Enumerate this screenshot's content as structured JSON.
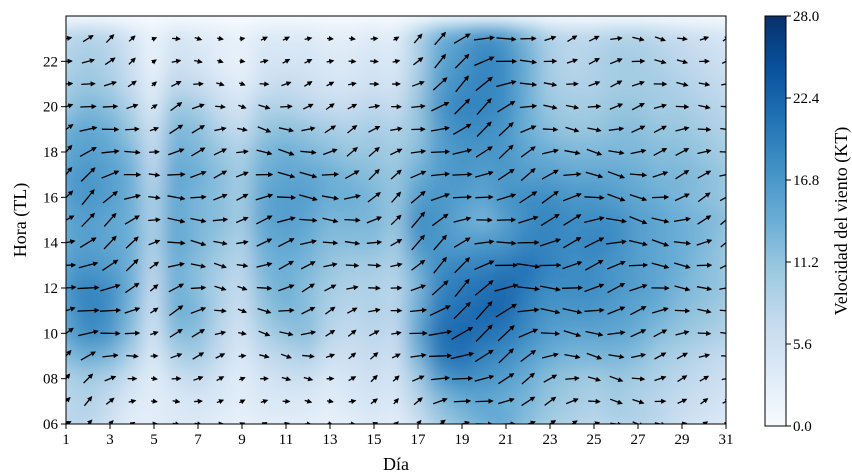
{
  "chart_data": {
    "type": "heatmap",
    "subtype": "wind-speed heatmap with wind-direction vectors",
    "title": "",
    "xlabel": "Día",
    "ylabel": "Hora (TL)",
    "colorbar_label": "Velocidad del viento (KT)",
    "colormap": "Blues",
    "colors": {
      "low": "#f7fbff",
      "high": "#08306b"
    },
    "xlim": [
      1,
      31
    ],
    "ylim": [
      6,
      24
    ],
    "x_ticks": [
      "1",
      "3",
      "5",
      "7",
      "9",
      "11",
      "13",
      "15",
      "17",
      "19",
      "21",
      "23",
      "25",
      "27",
      "29",
      "31"
    ],
    "y_ticks": [
      "06",
      "08",
      "10",
      "12",
      "14",
      "16",
      "18",
      "20",
      "22"
    ],
    "colorbar_range": [
      0,
      28
    ],
    "colorbar_ticks": [
      "0.0",
      "5.6",
      "11.2",
      "16.8",
      "22.4",
      "28.0"
    ],
    "x": [
      1,
      2,
      3,
      4,
      5,
      6,
      7,
      8,
      9,
      10,
      11,
      12,
      13,
      14,
      15,
      16,
      17,
      18,
      19,
      20,
      21,
      22,
      23,
      24,
      25,
      26,
      27,
      28,
      29,
      30,
      31
    ],
    "y": [
      6,
      7,
      8,
      9,
      10,
      11,
      12,
      13,
      14,
      15,
      16,
      17,
      18,
      19,
      20,
      21,
      22,
      23
    ],
    "speed_grid": [
      [
        8,
        8,
        6,
        3,
        3,
        4,
        4,
        3,
        2,
        3,
        3,
        3,
        2,
        3,
        4,
        3,
        6,
        10,
        12,
        14,
        15,
        12,
        10,
        9,
        8,
        9,
        9,
        8,
        6,
        5,
        4
      ],
      [
        8,
        9,
        7,
        4,
        3,
        4,
        5,
        4,
        3,
        4,
        4,
        4,
        3,
        4,
        5,
        4,
        8,
        12,
        14,
        15,
        14,
        13,
        11,
        10,
        9,
        10,
        9,
        8,
        7,
        6,
        5
      ],
      [
        9,
        10,
        9,
        6,
        3,
        6,
        7,
        5,
        3,
        5,
        6,
        6,
        4,
        5,
        6,
        5,
        10,
        16,
        18,
        17,
        16,
        14,
        12,
        11,
        10,
        11,
        10,
        9,
        8,
        7,
        6
      ],
      [
        12,
        14,
        13,
        9,
        4,
        9,
        10,
        7,
        4,
        7,
        8,
        9,
        6,
        6,
        7,
        6,
        13,
        20,
        21,
        19,
        18,
        16,
        14,
        13,
        13,
        13,
        12,
        10,
        9,
        8,
        7
      ],
      [
        15,
        18,
        17,
        12,
        5,
        12,
        12,
        8,
        5,
        9,
        11,
        12,
        8,
        7,
        8,
        7,
        15,
        21,
        22,
        21,
        20,
        18,
        16,
        15,
        15,
        15,
        14,
        12,
        11,
        10,
        9
      ],
      [
        16,
        19,
        18,
        13,
        6,
        14,
        13,
        9,
        6,
        11,
        13,
        12,
        9,
        8,
        9,
        8,
        14,
        20,
        21,
        22,
        22,
        19,
        17,
        17,
        17,
        16,
        15,
        14,
        12,
        11,
        10
      ],
      [
        17,
        19,
        18,
        14,
        7,
        14,
        12,
        9,
        7,
        12,
        14,
        12,
        10,
        9,
        9,
        8,
        13,
        19,
        20,
        21,
        22,
        20,
        18,
        18,
        18,
        17,
        16,
        15,
        13,
        12,
        11
      ],
      [
        16,
        17,
        16,
        14,
        8,
        14,
        12,
        10,
        8,
        13,
        14,
        13,
        11,
        10,
        10,
        9,
        14,
        18,
        19,
        19,
        20,
        21,
        19,
        18,
        18,
        17,
        16,
        15,
        14,
        12,
        11
      ],
      [
        15,
        16,
        15,
        14,
        9,
        15,
        13,
        11,
        9,
        14,
        15,
        14,
        12,
        12,
        12,
        10,
        17,
        17,
        16,
        17,
        17,
        19,
        19,
        18,
        19,
        18,
        16,
        15,
        14,
        13,
        11
      ],
      [
        15,
        16,
        15,
        14,
        9,
        15,
        13,
        12,
        10,
        15,
        16,
        15,
        13,
        13,
        13,
        11,
        18,
        17,
        15,
        13,
        16,
        18,
        19,
        18,
        18,
        18,
        16,
        15,
        14,
        13,
        12
      ],
      [
        16,
        17,
        16,
        14,
        9,
        15,
        13,
        12,
        10,
        15,
        16,
        16,
        14,
        14,
        13,
        11,
        16,
        17,
        16,
        15,
        17,
        18,
        18,
        17,
        17,
        16,
        15,
        14,
        13,
        12,
        11
      ],
      [
        16,
        17,
        16,
        14,
        8,
        15,
        14,
        12,
        10,
        14,
        15,
        15,
        14,
        13,
        12,
        11,
        14,
        16,
        17,
        16,
        17,
        16,
        16,
        15,
        15,
        15,
        14,
        13,
        13,
        12,
        11
      ],
      [
        15,
        16,
        15,
        13,
        7,
        14,
        13,
        11,
        9,
        13,
        14,
        13,
        12,
        11,
        11,
        10,
        12,
        16,
        17,
        17,
        17,
        15,
        14,
        13,
        13,
        13,
        13,
        12,
        12,
        11,
        10
      ],
      [
        14,
        15,
        14,
        11,
        6,
        13,
        12,
        9,
        7,
        11,
        12,
        11,
        10,
        9,
        10,
        9,
        11,
        16,
        18,
        18,
        17,
        14,
        12,
        11,
        11,
        12,
        12,
        11,
        11,
        10,
        9
      ],
      [
        11,
        13,
        12,
        9,
        4,
        11,
        10,
        7,
        5,
        9,
        9,
        8,
        7,
        7,
        8,
        7,
        11,
        17,
        19,
        19,
        18,
        14,
        11,
        10,
        10,
        11,
        11,
        10,
        10,
        9,
        8
      ],
      [
        10,
        11,
        10,
        7,
        3,
        8,
        7,
        5,
        3,
        6,
        7,
        6,
        5,
        5,
        6,
        5,
        10,
        16,
        18,
        19,
        18,
        14,
        10,
        9,
        9,
        10,
        10,
        10,
        9,
        8,
        7
      ],
      [
        9,
        10,
        9,
        6,
        2,
        6,
        5,
        3,
        2,
        5,
        5,
        5,
        4,
        4,
        5,
        4,
        9,
        15,
        17,
        19,
        18,
        14,
        10,
        8,
        9,
        10,
        10,
        9,
        8,
        7,
        6
      ],
      [
        8,
        9,
        8,
        5,
        2,
        5,
        4,
        3,
        2,
        4,
        4,
        4,
        3,
        3,
        4,
        3,
        9,
        14,
        16,
        18,
        17,
        13,
        9,
        8,
        8,
        9,
        9,
        8,
        7,
        6,
        5
      ]
    ]
  }
}
